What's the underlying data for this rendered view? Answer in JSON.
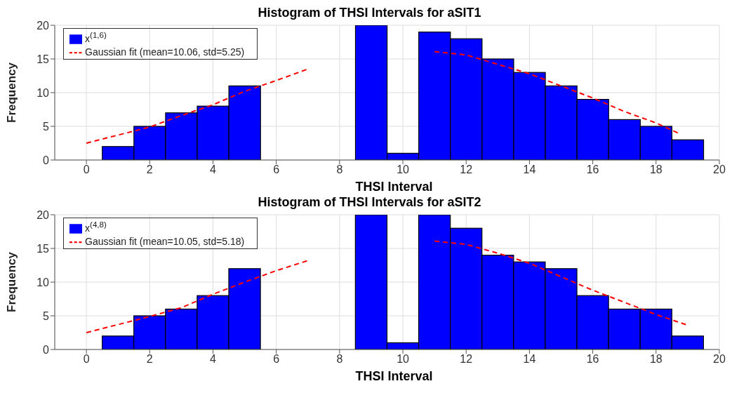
{
  "chart_data": [
    {
      "type": "histogram",
      "title": "Histogram of THSI Intervals for aSIT1",
      "xlabel": "THSI Interval",
      "ylabel": "Frequency",
      "bins": [
        0.5,
        1.5,
        2.5,
        3.5,
        4.5,
        5.5,
        6.5,
        7.5,
        8.5,
        9.5,
        10.5,
        11.5,
        12.5,
        13.5,
        14.5,
        15.5,
        16.5,
        17.5,
        18.5,
        19.5
      ],
      "xlim": [
        -1,
        20
      ],
      "xticks": [
        0,
        2,
        4,
        6,
        8,
        10,
        12,
        14,
        16,
        18,
        20
      ],
      "ylim": [
        0,
        20
      ],
      "yticks": [
        0,
        5,
        10,
        15,
        20
      ],
      "grid": true,
      "legend": "top left",
      "series": [
        {
          "type": "histogram",
          "name": "x$^{(1,6)}$",
          "color": "#0000ff",
          "values": [
            2,
            5,
            7,
            8,
            11,
            null,
            null,
            null,
            20,
            1,
            19,
            18,
            15,
            13,
            11,
            9,
            6,
            5,
            3
          ]
        },
        {
          "type": "line",
          "name": "Gaussian fit (mean=10.06, std=5.25)",
          "color": "#ff0000",
          "line_style": "dashed",
          "x": [
            0,
            2,
            3,
            4,
            5,
            6,
            7,
            8,
            9,
            10,
            11,
            12,
            13,
            14,
            15,
            16,
            17,
            18,
            18.7
          ],
          "values": [
            2.5,
            4.9,
            6.6,
            8.2,
            10.2,
            11.8,
            13.5,
            null,
            null,
            null,
            16.1,
            15.6,
            14.2,
            12.8,
            11,
            9.2,
            7.2,
            5.5,
            4
          ]
        }
      ]
    },
    {
      "type": "histogram",
      "title": "Histogram of THSI Intervals for aSIT2",
      "xlabel": "THSI Interval",
      "ylabel": "Frequency",
      "bins": [
        0.5,
        1.5,
        2.5,
        3.5,
        4.5,
        5.5,
        6.5,
        7.5,
        8.5,
        9.5,
        10.5,
        11.5,
        12.5,
        13.5,
        14.5,
        15.5,
        16.5,
        17.5,
        18.5,
        19.5
      ],
      "xlim": [
        -1,
        20
      ],
      "xticks": [
        0,
        2,
        4,
        6,
        8,
        10,
        12,
        14,
        16,
        18,
        20
      ],
      "ylim": [
        0,
        20
      ],
      "yticks": [
        0,
        5,
        10,
        15,
        20
      ],
      "grid": true,
      "legend": "top left",
      "series": [
        {
          "type": "histogram",
          "name": "x$^{(4,8)}$",
          "color": "#0000ff",
          "values": [
            2,
            5,
            6,
            8,
            12,
            null,
            null,
            null,
            20,
            1,
            20,
            18,
            14,
            13,
            12,
            8,
            6,
            6,
            2
          ]
        },
        {
          "type": "line",
          "name": "Gaussian fit (mean=10.05, std=5.18)",
          "color": "#ff0000",
          "line_style": "dashed",
          "x": [
            0,
            2,
            3,
            4,
            5,
            6,
            7,
            8,
            9,
            10,
            11,
            12,
            13,
            14,
            15,
            16,
            17,
            18,
            19
          ],
          "values": [
            2.5,
            4.9,
            6.2,
            8.2,
            10,
            11.7,
            13.2,
            null,
            null,
            null,
            16.1,
            15.6,
            14.3,
            12.8,
            10.8,
            8.8,
            7,
            5.2,
            3.6
          ]
        }
      ]
    }
  ]
}
